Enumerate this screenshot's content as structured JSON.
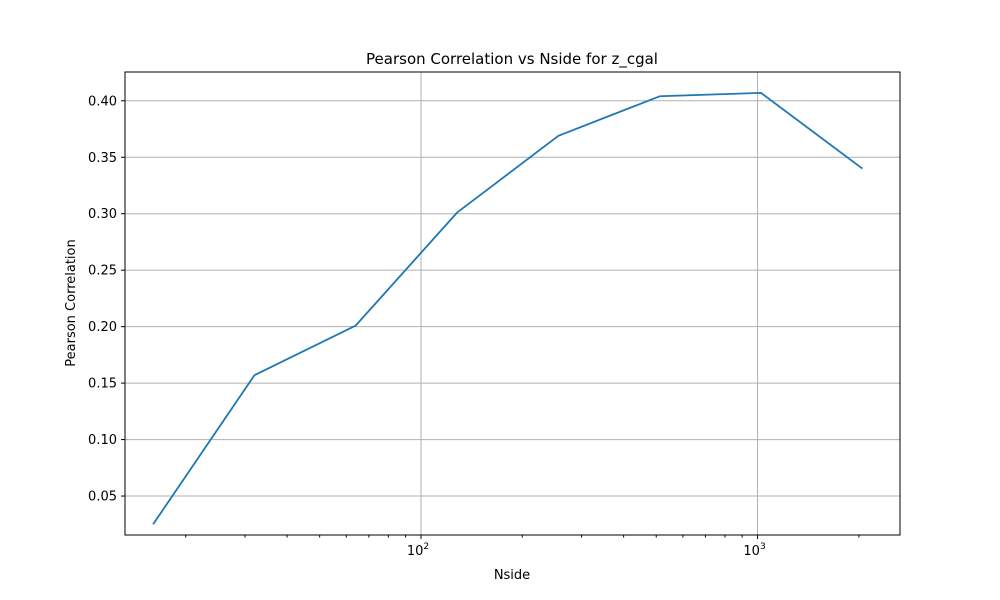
{
  "chart_data": {
    "type": "line",
    "title": "Pearson Correlation vs Nside for z_cgal",
    "xlabel": "Nside",
    "ylabel": "Pearson Correlation",
    "xscale": "log",
    "xlim": [
      13.2,
      2650
    ],
    "ylim": [
      0.0155,
      0.4255
    ],
    "grid": true,
    "x_ticks": [
      {
        "value": 100,
        "base": "10",
        "exp": "2"
      },
      {
        "value": 1000,
        "base": "10",
        "exp": "3"
      }
    ],
    "y_ticks": [
      {
        "value": 0.05,
        "label": "0.05"
      },
      {
        "value": 0.1,
        "label": "0.10"
      },
      {
        "value": 0.15,
        "label": "0.15"
      },
      {
        "value": 0.2,
        "label": "0.20"
      },
      {
        "value": 0.25,
        "label": "0.25"
      },
      {
        "value": 0.3,
        "label": "0.30"
      },
      {
        "value": 0.35,
        "label": "0.35"
      },
      {
        "value": 0.4,
        "label": "0.40"
      }
    ],
    "series": [
      {
        "color": "#1f77b4",
        "x": [
          16,
          32,
          64,
          128,
          256,
          512,
          1024,
          2048
        ],
        "y": [
          0.025,
          0.157,
          0.201,
          0.301,
          0.369,
          0.404,
          0.407,
          0.34
        ]
      }
    ]
  }
}
